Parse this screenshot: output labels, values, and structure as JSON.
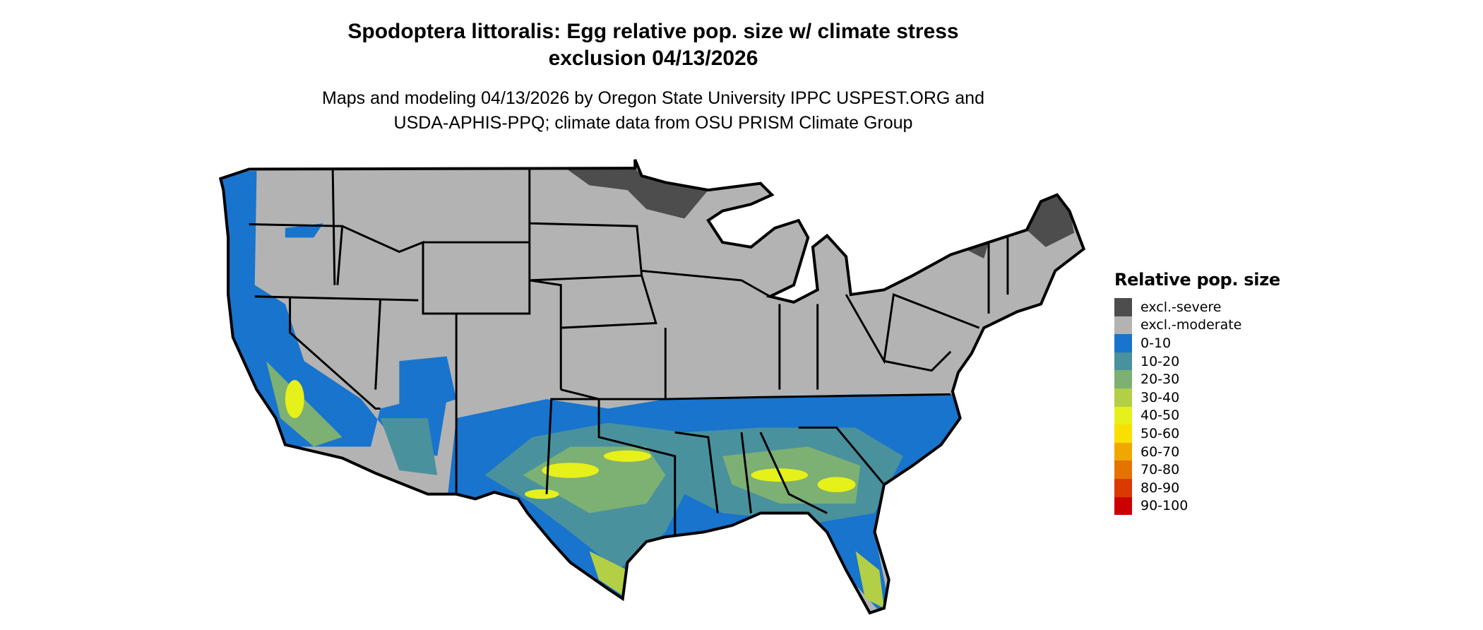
{
  "title_line1": "Spodoptera littoralis: Egg relative pop. size w/ climate stress",
  "title_line2": "exclusion 04/13/2026",
  "subtitle_line1": "Maps and modeling 04/13/2026 by Oregon State University IPPC USPEST.ORG and",
  "subtitle_line2": "USDA-APHIS-PPQ; climate data from OSU PRISM Climate Group",
  "legend": {
    "title": "Relative pop. size",
    "items": [
      {
        "label": "excl.-severe",
        "color": "#4d4d4d"
      },
      {
        "label": "excl.-moderate",
        "color": "#b3b3b3"
      },
      {
        "label": "0-10",
        "color": "#1874cd"
      },
      {
        "label": "10-20",
        "color": "#4a919e"
      },
      {
        "label": "20-30",
        "color": "#7db073"
      },
      {
        "label": "30-40",
        "color": "#b2cf46"
      },
      {
        "label": "40-50",
        "color": "#e6f01a"
      },
      {
        "label": "50-60",
        "color": "#f9e000"
      },
      {
        "label": "60-70",
        "color": "#f0a800"
      },
      {
        "label": "70-80",
        "color": "#e57300"
      },
      {
        "label": "80-90",
        "color": "#da3a00"
      },
      {
        "label": "90-100",
        "color": "#cd0000"
      }
    ]
  }
}
